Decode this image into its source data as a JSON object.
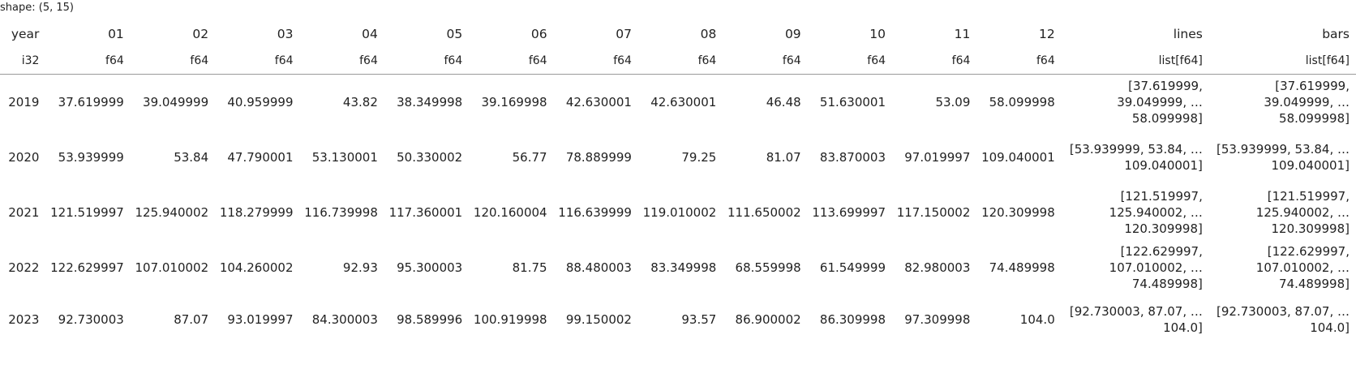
{
  "shape_label": "shape: (5, 15)",
  "columns": [
    {
      "name": "year",
      "dtype": "i32"
    },
    {
      "name": "01",
      "dtype": "f64"
    },
    {
      "name": "02",
      "dtype": "f64"
    },
    {
      "name": "03",
      "dtype": "f64"
    },
    {
      "name": "04",
      "dtype": "f64"
    },
    {
      "name": "05",
      "dtype": "f64"
    },
    {
      "name": "06",
      "dtype": "f64"
    },
    {
      "name": "07",
      "dtype": "f64"
    },
    {
      "name": "08",
      "dtype": "f64"
    },
    {
      "name": "09",
      "dtype": "f64"
    },
    {
      "name": "10",
      "dtype": "f64"
    },
    {
      "name": "11",
      "dtype": "f64"
    },
    {
      "name": "12",
      "dtype": "f64"
    },
    {
      "name": "lines",
      "dtype": "list[f64]"
    },
    {
      "name": "bars",
      "dtype": "list[f64]"
    }
  ],
  "rows": [
    {
      "year": "2019",
      "values": [
        "37.619999",
        "39.049999",
        "40.959999",
        "43.82",
        "38.349998",
        "39.169998",
        "42.630001",
        "42.630001",
        "46.48",
        "51.630001",
        "53.09",
        "58.099998"
      ],
      "lines": [
        "[37.619999,",
        "39.049999, …",
        "58.099998]"
      ],
      "bars": [
        "[37.619999,",
        "39.049999, …",
        "58.099998]"
      ]
    },
    {
      "year": "2020",
      "values": [
        "53.939999",
        "53.84",
        "47.790001",
        "53.130001",
        "50.330002",
        "56.77",
        "78.889999",
        "79.25",
        "81.07",
        "83.870003",
        "97.019997",
        "109.040001"
      ],
      "lines": [
        "[53.939999, 53.84, …",
        "109.040001]"
      ],
      "bars": [
        "[53.939999, 53.84, …",
        "109.040001]"
      ]
    },
    {
      "year": "2021",
      "values": [
        "121.519997",
        "125.940002",
        "118.279999",
        "116.739998",
        "117.360001",
        "120.160004",
        "116.639999",
        "119.010002",
        "111.650002",
        "113.699997",
        "117.150002",
        "120.309998"
      ],
      "lines": [
        "[121.519997,",
        "125.940002, …",
        "120.309998]"
      ],
      "bars": [
        "[121.519997,",
        "125.940002, …",
        "120.309998]"
      ]
    },
    {
      "year": "2022",
      "values": [
        "122.629997",
        "107.010002",
        "104.260002",
        "92.93",
        "95.300003",
        "81.75",
        "88.480003",
        "83.349998",
        "68.559998",
        "61.549999",
        "82.980003",
        "74.489998"
      ],
      "lines": [
        "[122.629997,",
        "107.010002, …",
        "74.489998]"
      ],
      "bars": [
        "[122.629997,",
        "107.010002, …",
        "74.489998]"
      ]
    },
    {
      "year": "2023",
      "values": [
        "92.730003",
        "87.07",
        "93.019997",
        "84.300003",
        "98.589996",
        "100.919998",
        "99.150002",
        "93.57",
        "86.900002",
        "86.309998",
        "97.309998",
        "104.0"
      ],
      "lines": [
        "[92.730003, 87.07, …",
        "104.0]"
      ],
      "bars": [
        "[92.730003, 87.07, …",
        "104.0]"
      ]
    }
  ]
}
